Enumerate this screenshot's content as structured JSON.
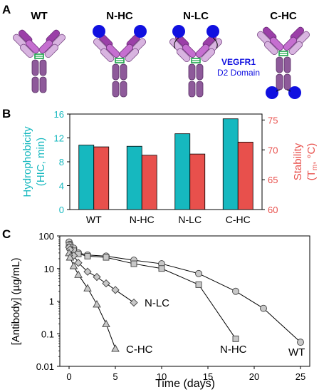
{
  "panels": {
    "a": "A",
    "b": "B",
    "c": "C"
  },
  "panel_a": {
    "antibodies": [
      "WT",
      "N-HC",
      "N-LC",
      "C-HC"
    ],
    "legend_title": "VEGFR1",
    "legend_subtitle": "D2 Domain",
    "colors": {
      "heavy_dark": "#9b3fa8",
      "heavy_light": "#c56fd0",
      "light_chain": "#d8b4e0",
      "fc": "#8e5a9a",
      "hinge": "#1aa34a",
      "domain": "#1010e0"
    }
  },
  "panel_b": {
    "chart_data": {
      "type": "bar",
      "categories": [
        "WT",
        "N-HC",
        "N-LC",
        "C-HC"
      ],
      "series": [
        {
          "name": "Hydrophobicity",
          "axis": "left",
          "color": "#16b8bf",
          "values": [
            10.8,
            10.6,
            12.7,
            15.2
          ]
        },
        {
          "name": "Stability",
          "axis": "right",
          "color": "#e8504c",
          "values": [
            70.5,
            69.1,
            69.3,
            71.3
          ]
        }
      ],
      "left_axis": {
        "label_line1": "Hydrophobicity",
        "label_line2": "(HIC, min)",
        "ylim": [
          0,
          16
        ],
        "ticks": [
          "0",
          "4",
          "8",
          "12",
          "16"
        ],
        "color": "#16b8bf"
      },
      "right_axis": {
        "label_line1": "Stability",
        "label_line2_pre": "(T",
        "label_line2_sub": "m",
        "label_line2_post": ", °C)",
        "ylim": [
          60,
          76
        ],
        "ticks": [
          "60",
          "65",
          "70",
          "75"
        ],
        "color": "#e8504c"
      }
    }
  },
  "panel_c": {
    "chart_data": {
      "type": "line",
      "xlabel": "Time (days)",
      "ylabel": "[Antibody] (µg/mL)",
      "xlim": [
        -1,
        26
      ],
      "ylim": [
        0.01,
        100
      ],
      "log_y": true,
      "x_ticks": [
        "0",
        "5",
        "10",
        "15",
        "20",
        "25"
      ],
      "y_ticks": [
        "0.01",
        "0.1",
        "1",
        "10",
        "100"
      ],
      "series": [
        {
          "name": "WT",
          "marker": "circle",
          "x": [
            0,
            0.1,
            0.5,
            1,
            2,
            4,
            7,
            10,
            14,
            18,
            21,
            25
          ],
          "y": [
            65,
            55,
            42,
            30,
            26,
            24,
            18,
            14,
            7,
            2,
            0.6,
            0.055
          ]
        },
        {
          "name": "N-HC",
          "marker": "square",
          "x": [
            0,
            0.1,
            0.5,
            1,
            2,
            4,
            7,
            10,
            14,
            18
          ],
          "y": [
            52,
            45,
            35,
            28,
            24,
            22,
            14,
            10,
            3.2,
            0.07
          ]
        },
        {
          "name": "N-LC",
          "marker": "diamond",
          "x": [
            0,
            0.1,
            0.5,
            1,
            2,
            3,
            4,
            5,
            7
          ],
          "y": [
            45,
            38,
            25,
            15,
            8,
            5.5,
            3.5,
            2.2,
            0.9
          ]
        },
        {
          "name": "C-HC",
          "marker": "triangle",
          "x": [
            0,
            0.1,
            0.5,
            1,
            2,
            3,
            4,
            5
          ],
          "y": [
            30,
            22,
            12,
            6.5,
            2.5,
            0.8,
            0.2,
            0.035
          ]
        }
      ]
    }
  }
}
